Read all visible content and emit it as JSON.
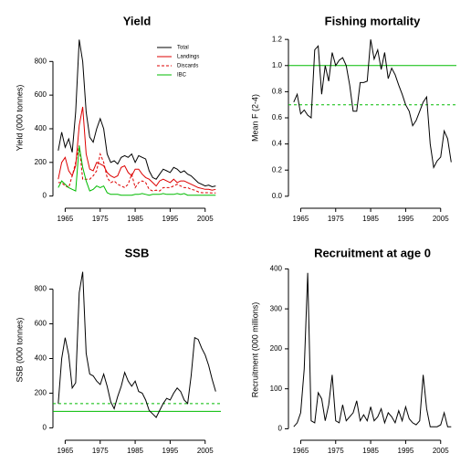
{
  "chart_data": [
    {
      "type": "line",
      "title": "Yield",
      "ylabel": "Yield (000 tonnes)",
      "x": [
        1963,
        1964,
        1965,
        1966,
        1967,
        1968,
        1969,
        1970,
        1971,
        1972,
        1973,
        1974,
        1975,
        1976,
        1977,
        1978,
        1979,
        1980,
        1981,
        1982,
        1983,
        1984,
        1985,
        1986,
        1987,
        1988,
        1989,
        1990,
        1991,
        1992,
        1993,
        1994,
        1995,
        1996,
        1997,
        1998,
        1999,
        2000,
        2001,
        2002,
        2003,
        2004,
        2005,
        2006,
        2007,
        2008
      ],
      "series": [
        {
          "name": "Total",
          "color": "#000000",
          "dashed": false,
          "values": [
            270,
            380,
            290,
            340,
            260,
            500,
            930,
            800,
            500,
            350,
            320,
            400,
            460,
            400,
            250,
            200,
            210,
            190,
            230,
            240,
            230,
            250,
            200,
            240,
            230,
            220,
            150,
            110,
            100,
            130,
            160,
            150,
            140,
            170,
            160,
            140,
            150,
            130,
            120,
            100,
            80,
            70,
            60,
            65,
            55,
            60
          ]
        },
        {
          "name": "Landings",
          "color": "#dd0000",
          "dashed": false,
          "values": [
            100,
            200,
            230,
            150,
            120,
            180,
            420,
            530,
            250,
            160,
            150,
            200,
            190,
            180,
            140,
            120,
            110,
            120,
            170,
            180,
            140,
            120,
            160,
            160,
            130,
            110,
            100,
            80,
            60,
            90,
            100,
            90,
            80,
            100,
            80,
            90,
            90,
            80,
            70,
            60,
            50,
            45,
            40,
            40,
            35,
            40
          ]
        },
        {
          "name": "Discards",
          "color": "#dd0000",
          "dashed": true,
          "values": [
            80,
            80,
            60,
            50,
            120,
            200,
            300,
            100,
            100,
            100,
            120,
            150,
            250,
            200,
            110,
            80,
            90,
            70,
            60,
            50,
            70,
            130,
            50,
            80,
            90,
            80,
            40,
            30,
            35,
            30,
            50,
            50,
            50,
            60,
            70,
            60,
            50,
            50,
            40,
            35,
            25,
            20,
            20,
            20,
            18,
            18
          ]
        },
        {
          "name": "IBC",
          "color": "#00bb00",
          "dashed": false,
          "values": [
            50,
            90,
            70,
            50,
            40,
            30,
            300,
            170,
            90,
            30,
            40,
            60,
            50,
            60,
            20,
            10,
            10,
            10,
            5,
            5,
            5,
            5,
            10,
            10,
            15,
            10,
            5,
            10,
            10,
            10,
            15,
            10,
            10,
            10,
            15,
            10,
            15,
            5,
            5,
            5,
            5,
            5,
            5,
            5,
            5,
            5
          ]
        }
      ],
      "legend": "top-right",
      "xlim": [
        1961.5,
        2009.5
      ],
      "xticks": [
        1965,
        1975,
        1985,
        1995,
        2005
      ],
      "ylim": [
        -40,
        970
      ],
      "yticks": [
        0,
        200,
        400,
        600,
        800
      ]
    },
    {
      "type": "line",
      "title": "Fishing mortality",
      "ylabel": "Mean F (2-4)",
      "color": "#000000",
      "x": [
        1963,
        1964,
        1965,
        1966,
        1967,
        1968,
        1969,
        1970,
        1971,
        1972,
        1973,
        1974,
        1975,
        1976,
        1977,
        1978,
        1979,
        1980,
        1981,
        1982,
        1983,
        1984,
        1985,
        1986,
        1987,
        1988,
        1989,
        1990,
        1991,
        1992,
        1993,
        1994,
        1995,
        1996,
        1997,
        1998,
        1999,
        2000,
        2001,
        2002,
        2003,
        2004,
        2005,
        2006,
        2007,
        2008
      ],
      "values": [
        0.72,
        0.78,
        0.63,
        0.66,
        0.62,
        0.6,
        1.12,
        1.15,
        0.78,
        1.0,
        0.88,
        1.1,
        1.0,
        1.04,
        1.06,
        1.0,
        0.85,
        0.65,
        0.65,
        0.87,
        0.87,
        0.88,
        1.2,
        1.05,
        1.12,
        0.97,
        1.1,
        0.9,
        0.98,
        0.93,
        0.85,
        0.78,
        0.7,
        0.65,
        0.54,
        0.58,
        0.65,
        0.72,
        0.76,
        0.4,
        0.22,
        0.27,
        0.3,
        0.5,
        0.44,
        0.26
      ],
      "reference_lines": [
        {
          "value": 1.0,
          "color": "#00bb00",
          "dashed": false
        },
        {
          "value": 0.7,
          "color": "#00bb00",
          "dashed": true
        }
      ],
      "xlim": [
        1961.5,
        2009.5
      ],
      "xticks": [
        1965,
        1975,
        1985,
        1995,
        2005
      ],
      "ylim": [
        -0.05,
        1.25
      ],
      "yticks": [
        {
          "value": 0,
          "label": "0.0"
        },
        0.2,
        0.4,
        0.6,
        0.8,
        {
          "value": 1,
          "label": "1.0"
        },
        1.2
      ]
    },
    {
      "type": "line",
      "title": "SSB",
      "ylabel": "SSB (000 tonnes)",
      "color": "#000000",
      "x": [
        1963,
        1964,
        1965,
        1966,
        1967,
        1968,
        1969,
        1970,
        1971,
        1972,
        1973,
        1974,
        1975,
        1976,
        1977,
        1978,
        1979,
        1980,
        1981,
        1982,
        1983,
        1984,
        1985,
        1986,
        1987,
        1988,
        1989,
        1990,
        1991,
        1992,
        1993,
        1994,
        1995,
        1996,
        1997,
        1998,
        1999,
        2000,
        2001,
        2002,
        2003,
        2004,
        2005,
        2006,
        2007,
        2008
      ],
      "values": [
        140,
        400,
        520,
        420,
        230,
        260,
        780,
        900,
        430,
        310,
        300,
        270,
        250,
        310,
        240,
        150,
        110,
        180,
        240,
        320,
        270,
        240,
        270,
        210,
        200,
        160,
        100,
        80,
        60,
        100,
        140,
        170,
        160,
        200,
        230,
        210,
        160,
        140,
        300,
        520,
        510,
        460,
        420,
        360,
        280,
        210
      ],
      "reference_lines": [
        {
          "value": 95,
          "color": "#00bb00",
          "dashed": false
        },
        {
          "value": 140,
          "color": "#00bb00",
          "dashed": true
        }
      ],
      "xlim": [
        1961.5,
        2009.5
      ],
      "xticks": [
        1965,
        1975,
        1985,
        1995,
        2005
      ],
      "ylim": [
        -40,
        940
      ],
      "yticks": [
        0,
        200,
        400,
        600,
        800
      ]
    },
    {
      "type": "line",
      "title": "Recruitment at age 0",
      "ylabel": "Recruitment (000 millions)",
      "color": "#000000",
      "x": [
        1963,
        1964,
        1965,
        1966,
        1967,
        1968,
        1969,
        1970,
        1971,
        1972,
        1973,
        1974,
        1975,
        1976,
        1977,
        1978,
        1979,
        1980,
        1981,
        1982,
        1983,
        1984,
        1985,
        1986,
        1987,
        1988,
        1989,
        1990,
        1991,
        1992,
        1993,
        1994,
        1995,
        1996,
        1997,
        1998,
        1999,
        2000,
        2001,
        2002,
        2003,
        2004,
        2005,
        2006,
        2007,
        2008
      ],
      "values": [
        5,
        15,
        40,
        150,
        390,
        20,
        15,
        90,
        75,
        20,
        60,
        135,
        20,
        15,
        60,
        20,
        30,
        40,
        70,
        20,
        35,
        20,
        55,
        20,
        30,
        50,
        15,
        40,
        30,
        15,
        45,
        20,
        55,
        25,
        15,
        10,
        20,
        135,
        50,
        5,
        5,
        5,
        10,
        40,
        5,
        5
      ],
      "xlim": [
        1961.5,
        2009.5
      ],
      "xticks": [
        1965,
        1975,
        1985,
        1995,
        2005
      ],
      "ylim": [
        -15,
        410
      ],
      "yticks": [
        0,
        100,
        200,
        300,
        400
      ]
    }
  ]
}
